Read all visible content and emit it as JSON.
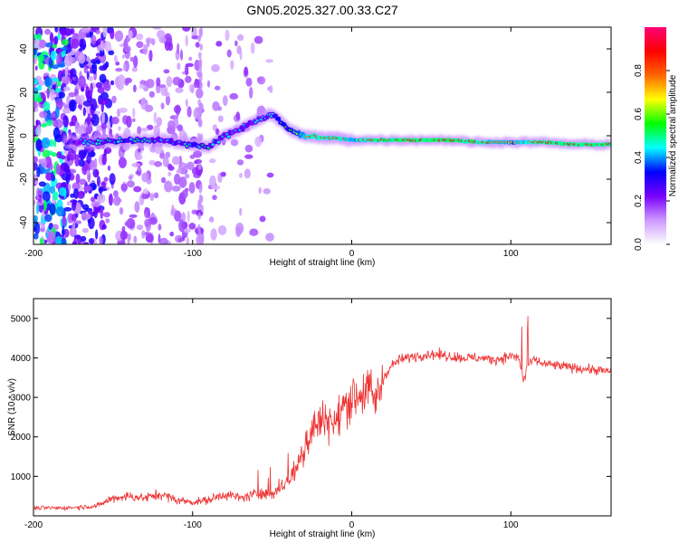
{
  "chart_data": [
    {
      "type": "heatmap",
      "title": "GN05.2025.327.00.33.C27",
      "xlabel": "Height of straight line (km)",
      "ylabel": "Frequency (Hz)",
      "xlim": [
        -200,
        163
      ],
      "ylim": [
        -50,
        50
      ],
      "xticks": [
        -200,
        -100,
        0,
        100
      ],
      "yticks": [
        -40,
        -20,
        0,
        20,
        40
      ],
      "colorbar": {
        "label": "Normalized spectral amplitude",
        "range": [
          0,
          1
        ],
        "ticks": [
          "0.0",
          "0.2",
          "0.4",
          "0.6",
          "0.8"
        ],
        "colors": [
          "#ffffff",
          "#cc99ff",
          "#7a00ff",
          "#0000ff",
          "#00ffff",
          "#00ff00",
          "#ffff00",
          "#ff6600",
          "#ff0000",
          "#ff0077"
        ]
      },
      "ridge": {
        "description_free": true,
        "x": [
          -180,
          -160,
          -140,
          -120,
          -100,
          -90,
          -80,
          -70,
          -60,
          -50,
          -45,
          -40,
          -30,
          -20,
          -10,
          0,
          20,
          40,
          60,
          80,
          100,
          120,
          140,
          163
        ],
        "y": [
          -3,
          -3,
          -2,
          -2,
          -4,
          -5,
          0,
          3,
          7,
          10,
          7,
          3,
          0,
          -1,
          -1,
          -2,
          -2,
          -2,
          -2,
          -3,
          -3,
          -3,
          -4,
          -4
        ],
        "amplitude": [
          0.3,
          0.5,
          0.5,
          0.45,
          0.5,
          0.5,
          0.45,
          0.45,
          0.4,
          0.45,
          0.55,
          0.55,
          0.75,
          0.85,
          0.85,
          0.75,
          0.9,
          0.9,
          0.95,
          0.85,
          0.7,
          0.9,
          0.9,
          0.9
        ]
      }
    },
    {
      "type": "line",
      "xlabel": "Height of straight line (km)",
      "ylabel": "SNR (10 * v/v)",
      "xlim": [
        -200,
        163
      ],
      "ylim": [
        0,
        5500
      ],
      "xticks": [
        -200,
        -100,
        0,
        100
      ],
      "yticks": [
        1000,
        2000,
        3000,
        4000,
        5000
      ],
      "series": [
        {
          "name": "SNR",
          "color": "#ee3333",
          "x": [
            -200,
            -180,
            -160,
            -150,
            -140,
            -130,
            -120,
            -110,
            -100,
            -90,
            -80,
            -70,
            -60,
            -50,
            -45,
            -40,
            -35,
            -30,
            -25,
            -20,
            -15,
            -10,
            -5,
            0,
            5,
            10,
            15,
            20,
            25,
            30,
            40,
            50,
            60,
            70,
            80,
            90,
            100,
            105,
            108,
            110,
            115,
            120,
            140,
            163
          ],
          "y": [
            200,
            200,
            250,
            450,
            500,
            450,
            550,
            400,
            350,
            400,
            550,
            450,
            550,
            550,
            700,
            900,
            1200,
            1700,
            2200,
            2400,
            2500,
            2300,
            2800,
            3000,
            3100,
            3200,
            2900,
            3500,
            3800,
            3950,
            4050,
            4100,
            4050,
            4000,
            4000,
            3950,
            4050,
            4000,
            3400,
            3800,
            3950,
            3850,
            3750,
            3650
          ]
        }
      ]
    }
  ]
}
